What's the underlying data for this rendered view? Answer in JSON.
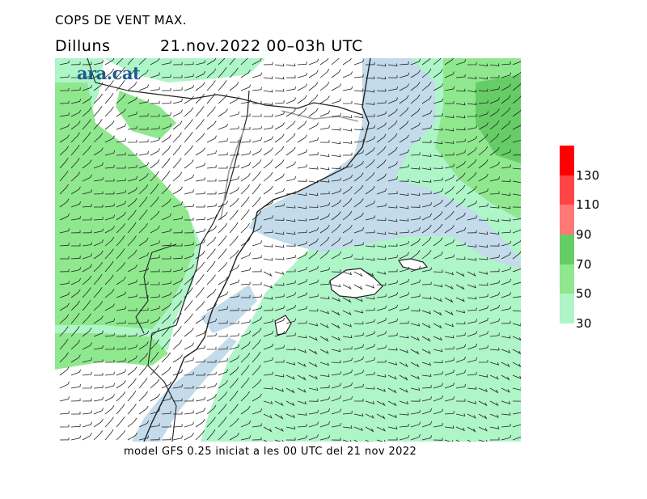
{
  "header": {
    "title": "COPS DE VENT MAX.",
    "day": "Dilluns",
    "period": "21.nov.2022 00–03h UTC"
  },
  "logo": {
    "text": "ara.cat"
  },
  "footer": {
    "text": "model GFS 0.25 iniciat a les 00 UTC del 21 nov 2022"
  },
  "legend": {
    "bins": [
      {
        "from": 30,
        "to": 50,
        "color": "#aef5c8"
      },
      {
        "from": 50,
        "to": 70,
        "color": "#8fe88e"
      },
      {
        "from": 70,
        "to": 90,
        "color": "#66cd66"
      },
      {
        "from": 90,
        "to": 110,
        "color": "#ff7777"
      },
      {
        "from": 110,
        "to": 130,
        "color": "#ff4444"
      },
      {
        "from": 130,
        "to": 150,
        "color": "#ff0000"
      }
    ],
    "labels": [
      "30",
      "50",
      "70",
      "90",
      "110",
      "130"
    ]
  },
  "colors": {
    "calm_blue": "#c3dbea",
    "land_outline": "#222222",
    "border_gray": "#a0a0a0",
    "barb": "#222222"
  }
}
